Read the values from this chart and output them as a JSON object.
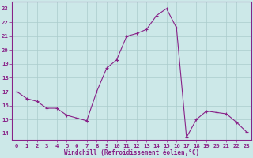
{
  "x": [
    0,
    1,
    2,
    3,
    4,
    5,
    6,
    7,
    8,
    9,
    10,
    11,
    12,
    13,
    14,
    15,
    16,
    17,
    18,
    19,
    20,
    21,
    22,
    23
  ],
  "y": [
    17.0,
    16.5,
    16.3,
    15.8,
    15.8,
    15.3,
    15.1,
    14.9,
    17.0,
    18.7,
    19.3,
    21.0,
    21.2,
    21.5,
    22.5,
    23.0,
    21.6,
    13.7,
    15.0,
    15.6,
    15.5,
    15.4,
    14.8,
    14.1
  ],
  "line_color": "#882288",
  "marker": "+",
  "marker_size": 3,
  "bg_color": "#cce8e8",
  "grid_color": "#aacccc",
  "ylabel_vals": [
    14,
    15,
    16,
    17,
    18,
    19,
    20,
    21,
    22,
    23
  ],
  "xlabel": "Windchill (Refroidissement éolien,°C)",
  "xlim": [
    -0.5,
    23.5
  ],
  "ylim": [
    13.5,
    23.5
  ],
  "xlabel_fontsize": 5.5,
  "tick_fontsize": 5.2,
  "label_color": "#882288"
}
